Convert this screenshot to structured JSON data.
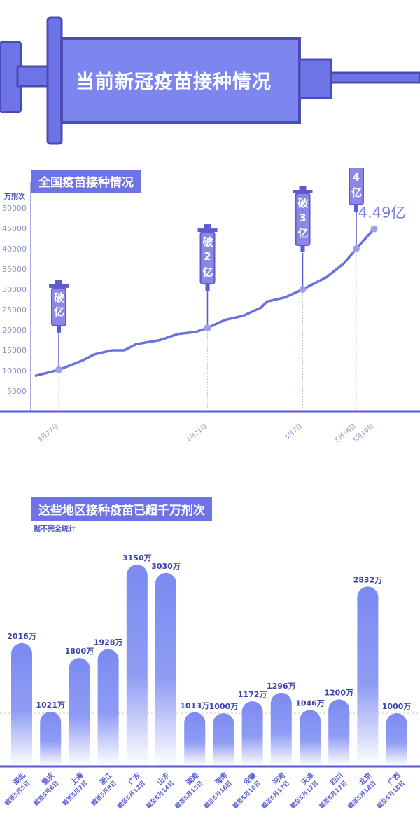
{
  "header": {
    "title": "当前新冠疫苗接种情况"
  },
  "colors": {
    "primary": "#5a5ad2",
    "light": "#7d86ee",
    "line": "#6a70e0"
  },
  "chart_data": [
    {
      "type": "line",
      "title": "全国疫苗接种情况",
      "ylabel": "万剂次",
      "ylim": [
        0,
        50000
      ],
      "yticks": [
        5000,
        10000,
        15000,
        20000,
        25000,
        30000,
        35000,
        40000,
        45000,
        50000
      ],
      "xtick_labels": [
        "3月27日",
        "4月21日",
        "5月7日",
        "5月16日",
        "5月19日"
      ],
      "x": [
        "03-23",
        "03-27",
        "03-31",
        "04-02",
        "04-05",
        "04-07",
        "04-09",
        "04-13",
        "04-16",
        "04-19",
        "04-21",
        "04-24",
        "04-27",
        "04-30",
        "05-01",
        "05-04",
        "05-07",
        "05-09",
        "05-11",
        "05-14",
        "05-16",
        "05-19"
      ],
      "values": [
        8700,
        10200,
        12500,
        14000,
        15000,
        15000,
        16500,
        17500,
        19000,
        19500,
        20500,
        22500,
        23500,
        25500,
        27000,
        28000,
        30000,
        31500,
        33000,
        36500,
        40000,
        44900
      ],
      "milestones": [
        {
          "x": "03-27",
          "label": "破亿"
        },
        {
          "x": "04-21",
          "label": "破2亿"
        },
        {
          "x": "05-07",
          "label": "破3亿"
        },
        {
          "x": "05-16",
          "label": "破4亿"
        }
      ],
      "end_label": "4.49亿"
    },
    {
      "type": "bar",
      "title": "这些地区接种疫苗已超千万剂次",
      "subtitle": "据不完全统计",
      "unit": "万",
      "categories": [
        "湖北",
        "重庆",
        "上海",
        "浙江",
        "广东",
        "山东",
        "湖南",
        "海南",
        "安徽",
        "河南",
        "天津",
        "四川",
        "北京",
        "广西"
      ],
      "dates": [
        "截至5月5日",
        "截至5月6日",
        "截至5月7日",
        "截至5月9日",
        "截至5月12日",
        "截至5月14日",
        "截至5月15日",
        "截至5月16日",
        "截至5月16日",
        "截至5月17日",
        "截至5月17日",
        "截至5月17日",
        "截至5月18日",
        "截至5月18日"
      ],
      "values": [
        2016,
        1021,
        1800,
        1928,
        3150,
        3030,
        1013,
        1000,
        1172,
        1296,
        1046,
        1200,
        2832,
        1000
      ],
      "reference_line": 1000
    }
  ]
}
